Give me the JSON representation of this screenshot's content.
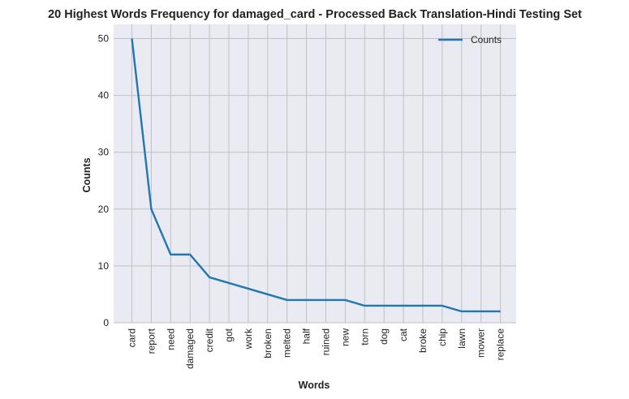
{
  "chart_data": {
    "type": "line",
    "title": "20 Highest Words Frequency for damaged_card - Processed Back Translation-Hindi Testing Set",
    "xlabel": "Words",
    "ylabel": "Counts",
    "categories": [
      "card",
      "report",
      "need",
      "damaged",
      "credit",
      "got",
      "work",
      "broken",
      "melted",
      "half",
      "ruined",
      "new",
      "torn",
      "dog",
      "cat",
      "broke",
      "chip",
      "lawn",
      "mower",
      "replace"
    ],
    "series": [
      {
        "name": "Counts",
        "values": [
          50,
          20,
          12,
          12,
          8,
          7,
          6,
          5,
          4,
          4,
          4,
          4,
          3,
          3,
          3,
          3,
          3,
          2,
          2,
          2
        ],
        "color": "#1f77b4"
      }
    ],
    "ylim": [
      0,
      52.5
    ],
    "yticks": [
      0,
      10,
      20,
      30,
      40,
      50
    ],
    "grid": true,
    "legend": "top-right",
    "colors": {
      "plot_bg": "#eaeaf2",
      "grid": "#c0c0c6",
      "line": "#1f77b4"
    }
  }
}
